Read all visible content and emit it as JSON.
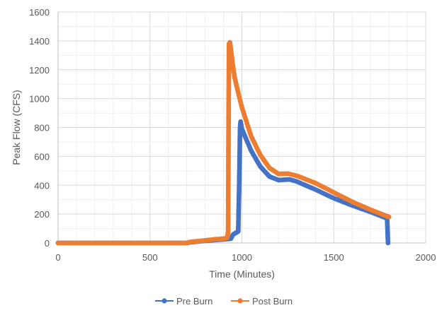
{
  "chart_data": {
    "type": "scatter",
    "title": "",
    "xlabel": "Time (Minutes)",
    "ylabel": "Peak Flow (CFS)",
    "xlim": [
      0,
      2000
    ],
    "ylim": [
      0,
      1600
    ],
    "xticks": [
      "0",
      "500",
      "1000",
      "1500",
      "2000"
    ],
    "yticks": [
      "0",
      "200",
      "400",
      "600",
      "800",
      "1000",
      "1200",
      "1400",
      "1600"
    ],
    "grid": true,
    "legend_position": "bottom",
    "series": [
      {
        "name": "Pre Burn",
        "color": "#4472c4",
        "points": [
          [
            0,
            0
          ],
          [
            700,
            0
          ],
          [
            720,
            5
          ],
          [
            760,
            10
          ],
          [
            800,
            15
          ],
          [
            850,
            20
          ],
          [
            900,
            25
          ],
          [
            940,
            30
          ],
          [
            950,
            55
          ],
          [
            960,
            65
          ],
          [
            970,
            72
          ],
          [
            980,
            80
          ],
          [
            985,
            380
          ],
          [
            990,
            800
          ],
          [
            993,
            840
          ],
          [
            1000,
            790
          ],
          [
            1050,
            640
          ],
          [
            1100,
            530
          ],
          [
            1150,
            460
          ],
          [
            1200,
            435
          ],
          [
            1230,
            438
          ],
          [
            1260,
            440
          ],
          [
            1300,
            425
          ],
          [
            1400,
            370
          ],
          [
            1500,
            310
          ],
          [
            1600,
            260
          ],
          [
            1700,
            215
          ],
          [
            1790,
            170
          ],
          [
            1795,
            0
          ]
        ]
      },
      {
        "name": "Post Burn",
        "color": "#ed7d31",
        "points": [
          [
            0,
            0
          ],
          [
            700,
            0
          ],
          [
            720,
            8
          ],
          [
            760,
            12
          ],
          [
            800,
            18
          ],
          [
            850,
            25
          ],
          [
            900,
            30
          ],
          [
            920,
            35
          ],
          [
            925,
            75
          ],
          [
            928,
            960
          ],
          [
            930,
            1380
          ],
          [
            935,
            1390
          ],
          [
            940,
            1340
          ],
          [
            950,
            1240
          ],
          [
            960,
            1150
          ],
          [
            980,
            1040
          ],
          [
            1000,
            940
          ],
          [
            1050,
            740
          ],
          [
            1100,
            610
          ],
          [
            1150,
            520
          ],
          [
            1200,
            478
          ],
          [
            1250,
            480
          ],
          [
            1300,
            465
          ],
          [
            1400,
            415
          ],
          [
            1500,
            350
          ],
          [
            1600,
            285
          ],
          [
            1700,
            230
          ],
          [
            1790,
            185
          ],
          [
            1800,
            180
          ]
        ]
      }
    ]
  }
}
